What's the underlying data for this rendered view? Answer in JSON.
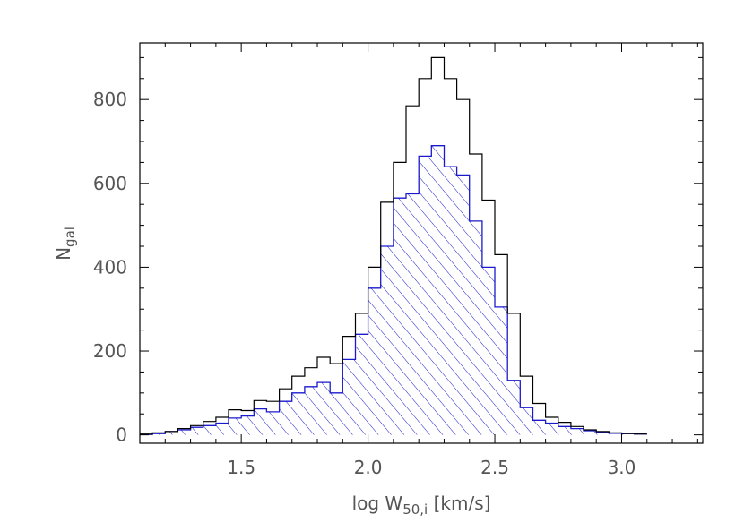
{
  "chart_data": {
    "type": "histogram",
    "title": "",
    "xlabel": {
      "main": "log W",
      "sub": "50,i",
      "unit": " [km/s]"
    },
    "ylabel": {
      "main": "N",
      "sub": "gal"
    },
    "xlim": [
      1.1,
      3.32
    ],
    "ylim": [
      -20,
      935
    ],
    "bin_width": 0.05,
    "bin_start": 1.1,
    "x_ticks": [
      1.5,
      2.0,
      2.5,
      3.0
    ],
    "x_tick_labels": [
      "1.5",
      "2.0",
      "2.5",
      "3.0"
    ],
    "y_ticks": [
      0,
      200,
      400,
      600,
      800
    ],
    "y_tick_labels": [
      "0",
      "200",
      "400",
      "600",
      "800"
    ],
    "grid": false,
    "series": [
      {
        "style": "outline",
        "color": "#000000",
        "values": [
          2,
          5,
          8,
          15,
          22,
          32,
          42,
          60,
          58,
          82,
          80,
          110,
          140,
          160,
          185,
          170,
          235,
          290,
          400,
          555,
          650,
          785,
          850,
          900,
          850,
          800,
          670,
          560,
          430,
          290,
          140,
          75,
          42,
          30,
          20,
          12,
          8,
          5,
          3,
          2
        ]
      },
      {
        "style": "hatched",
        "color": "#1a1acc",
        "values": [
          1,
          3,
          8,
          12,
          18,
          22,
          28,
          40,
          45,
          62,
          55,
          80,
          100,
          115,
          125,
          100,
          180,
          240,
          350,
          450,
          565,
          575,
          665,
          690,
          640,
          620,
          510,
          400,
          305,
          130,
          65,
          35,
          28,
          20,
          15,
          10,
          6,
          4,
          3,
          2
        ]
      }
    ]
  }
}
